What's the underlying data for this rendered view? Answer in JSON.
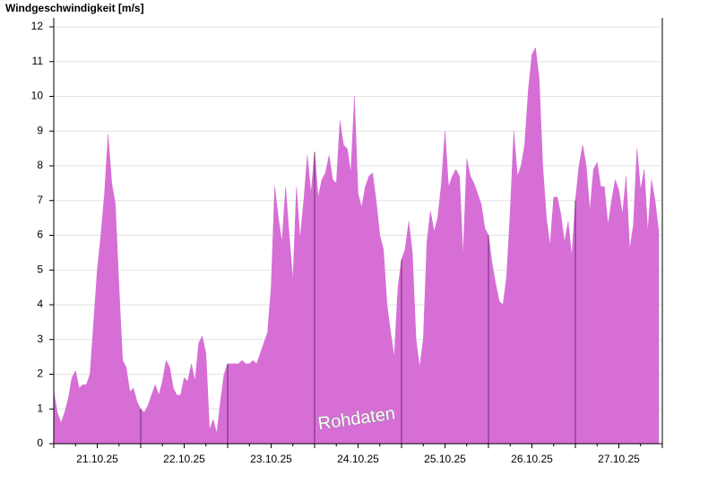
{
  "chart_data": {
    "type": "area",
    "title": "Windgeschwindigkeit [m/s]",
    "annotation": "Rohdaten",
    "categories": [
      "21.10.25",
      "22.10.25",
      "23.10.25",
      "24.10.25",
      "25.10.25",
      "26.10.25",
      "27.10.25"
    ],
    "values": [
      [
        1.5,
        0.9,
        0.6,
        0.9,
        1.3,
        1.9,
        2.1,
        1.6,
        1.7,
        1.7,
        2.0,
        3.5,
        5.0,
        6.0,
        7.2,
        8.9,
        7.5,
        6.9,
        4.5,
        2.4,
        2.2,
        1.5,
        1.6,
        1.2
      ],
      [
        1.0,
        0.9,
        1.1,
        1.4,
        1.7,
        1.4,
        1.8,
        2.4,
        2.2,
        1.6,
        1.4,
        1.4,
        1.9,
        1.8,
        2.3,
        1.8,
        2.9,
        3.1,
        2.6,
        0.4,
        0.7,
        0.3,
        1.2,
        2.0
      ],
      [
        2.3,
        2.3,
        2.3,
        2.3,
        2.4,
        2.3,
        2.3,
        2.4,
        2.3,
        2.6,
        2.9,
        3.2,
        4.5,
        7.4,
        6.5,
        5.8,
        7.4,
        6.0,
        4.7,
        7.4,
        5.9,
        7.0,
        8.3,
        7.2
      ],
      [
        8.4,
        7.1,
        7.6,
        7.8,
        8.3,
        7.6,
        7.5,
        9.3,
        8.6,
        8.5,
        7.8,
        10.0,
        7.2,
        6.8,
        7.4,
        7.7,
        7.8,
        7.0,
        6.0,
        5.6,
        4.0,
        3.2,
        2.5,
        4.5
      ],
      [
        5.3,
        5.6,
        6.4,
        5.5,
        3.0,
        2.2,
        3.0,
        5.8,
        6.7,
        6.1,
        6.5,
        7.5,
        9.0,
        7.4,
        7.7,
        7.9,
        7.7,
        5.4,
        8.2,
        7.7,
        7.5,
        7.2,
        6.9,
        6.2
      ],
      [
        6.0,
        5.2,
        4.6,
        4.1,
        4.0,
        4.8,
        6.7,
        9.0,
        7.7,
        8.0,
        8.6,
        10.2,
        11.2,
        11.4,
        10.5,
        8.0,
        6.5,
        5.7,
        7.1,
        7.1,
        6.6,
        5.8,
        6.4,
        5.4
      ],
      [
        7.0,
        8.0,
        8.6,
        8.0,
        6.7,
        7.9,
        8.1,
        7.4,
        7.4,
        6.3,
        7.0,
        7.6,
        7.3,
        6.6,
        7.7,
        5.6,
        6.3,
        8.5,
        7.3,
        7.9,
        6.1,
        7.6,
        7.0,
        6.1
      ]
    ],
    "color": "#d66ed6",
    "ylim": [
      0,
      12
    ],
    "yticks": [
      0,
      1,
      2,
      3,
      4,
      5,
      6,
      7,
      8,
      9,
      10,
      11,
      12
    ],
    "grid": true
  }
}
